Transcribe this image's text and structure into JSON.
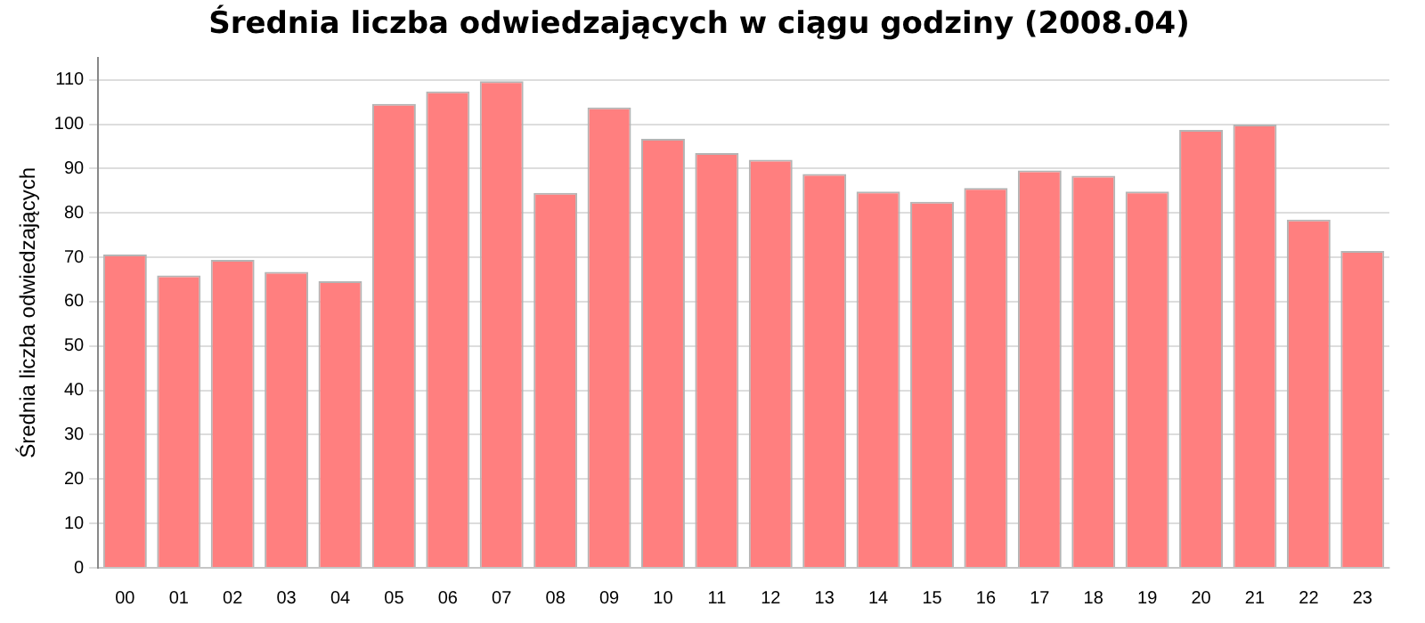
{
  "chart_data": {
    "type": "bar",
    "title": "Średnia liczba odwiedzających w ciągu godziny (2008.04)",
    "ylabel": "Średnia liczba odwiedzających",
    "categories": [
      "00",
      "01",
      "02",
      "03",
      "04",
      "05",
      "06",
      "07",
      "08",
      "09",
      "10",
      "11",
      "12",
      "13",
      "14",
      "15",
      "16",
      "17",
      "18",
      "19",
      "20",
      "21",
      "22",
      "23"
    ],
    "values": [
      70.6,
      65.9,
      69.4,
      66.7,
      64.6,
      104.6,
      107.4,
      109.7,
      84.5,
      103.8,
      96.7,
      93.5,
      92.0,
      88.8,
      84.8,
      82.5,
      85.6,
      89.6,
      88.4,
      84.8,
      98.7,
      99.9,
      78.5,
      71.4
    ],
    "color": "#ff7f7f",
    "ylim": [
      0,
      115
    ],
    "yticks": [
      0,
      10,
      20,
      30,
      40,
      50,
      60,
      70,
      80,
      90,
      100,
      110
    ],
    "grid": "y",
    "legend": false
  }
}
